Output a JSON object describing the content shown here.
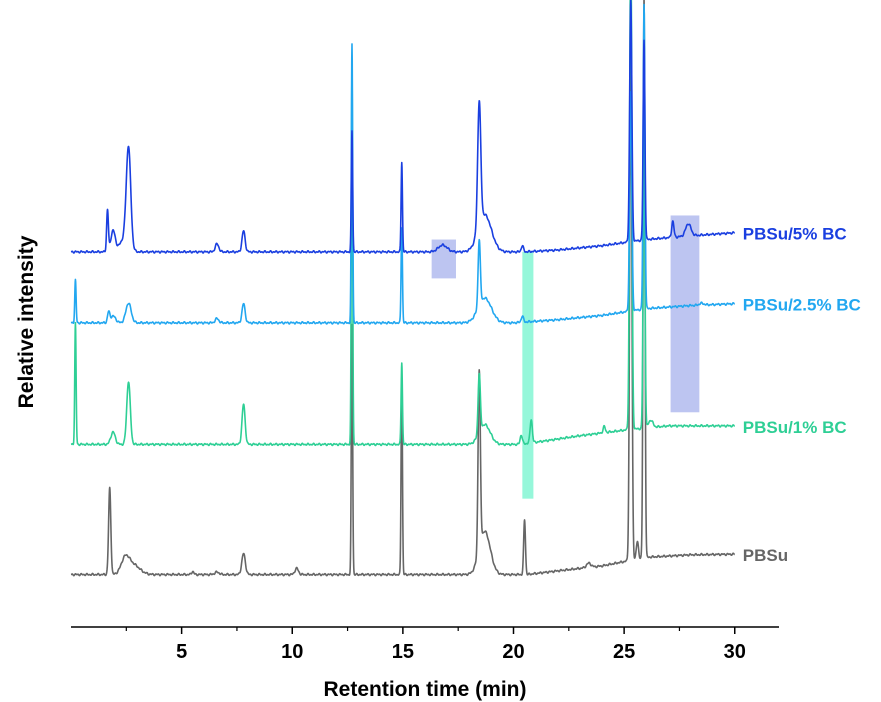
{
  "chart_data": {
    "type": "line",
    "title": "",
    "xlabel": "Retention time (min)",
    "ylabel": "Relative intensity",
    "xlim": [
      0,
      32
    ],
    "xticks": [
      5,
      10,
      15,
      20,
      25,
      30
    ],
    "ylim": [
      0,
      100
    ],
    "yticks_shown": false,
    "grid": false,
    "legend": "series labels placed at right end of each trace",
    "highlight_regions": [
      {
        "x": [
          16.3,
          17.4
        ],
        "y": [
          56.5,
          62.8
        ],
        "color": "#9aa6ea"
      },
      {
        "x": [
          20.4,
          20.9
        ],
        "y": [
          20.8,
          60.8
        ],
        "color": "#5ef3c6"
      },
      {
        "x": [
          27.1,
          28.4
        ],
        "y": [
          34.8,
          66.7
        ],
        "color": "#9aa6ea"
      }
    ],
    "series": [
      {
        "name": "PBSu",
        "color": "#666666",
        "baseline": 8.5,
        "end_value": 11.8,
        "drift": [
          [
            0,
            0
          ],
          [
            20.6,
            0
          ],
          [
            22,
            0.6
          ],
          [
            24,
            1.4
          ],
          [
            26,
            2.8
          ],
          [
            28,
            3.2
          ],
          [
            30,
            3.3
          ]
        ],
        "peaks": [
          [
            1.75,
            14,
            0.05
          ],
          [
            2.45,
            2.3,
            0.18
          ],
          [
            2.8,
            1.6,
            0.3
          ],
          [
            5.5,
            0.5,
            0.05
          ],
          [
            6.6,
            0.4,
            0.1
          ],
          [
            7.8,
            3.4,
            0.08
          ],
          [
            10.2,
            1.0,
            0.08
          ],
          [
            12.7,
            40.5,
            0.03
          ],
          [
            14.95,
            32,
            0.03
          ],
          [
            18.45,
            29,
            0.05
          ],
          [
            18.7,
            7,
            0.25
          ],
          [
            20.5,
            8.9,
            0.04
          ],
          [
            23.4,
            0.7,
            0.1
          ],
          [
            25.3,
            81.5,
            0.05
          ],
          [
            25.6,
            2.8,
            0.05
          ],
          [
            25.9,
            90.9,
            0.04
          ]
        ]
      },
      {
        "name": "PBSu/1% BC",
        "color": "#2ecf95",
        "baseline": 29.6,
        "end_value": 32.6,
        "drift": [
          [
            0,
            0
          ],
          [
            20.3,
            0
          ],
          [
            21.5,
            0.6
          ],
          [
            23,
            1.4
          ],
          [
            25,
            2.3
          ],
          [
            27,
            3.0
          ],
          [
            30,
            3.0
          ]
        ],
        "peaks": [
          [
            0.2,
            19.6,
            0.03
          ],
          [
            1.9,
            2.0,
            0.1
          ],
          [
            2.6,
            10.2,
            0.08
          ],
          [
            7.8,
            6.5,
            0.07
          ],
          [
            12.7,
            60.9,
            0.03
          ],
          [
            14.95,
            13.3,
            0.03
          ],
          [
            18.45,
            9.6,
            0.05
          ],
          [
            18.7,
            3.2,
            0.25
          ],
          [
            20.35,
            1.5,
            0.05
          ],
          [
            20.8,
            3.8,
            0.05
          ],
          [
            24.1,
            1.0,
            0.05
          ],
          [
            25.3,
            80.0,
            0.05
          ],
          [
            25.9,
            50.6,
            0.04
          ],
          [
            26.2,
            1.2,
            0.1
          ]
        ]
      },
      {
        "name": "PBSu/2.5% BC",
        "color": "#22a7f0",
        "baseline": 49.3,
        "end_value": 52.4,
        "drift": [
          [
            0,
            0
          ],
          [
            20,
            0
          ],
          [
            22,
            0.5
          ],
          [
            24,
            1.2
          ],
          [
            26,
            2.3
          ],
          [
            28,
            2.8
          ],
          [
            30,
            3.1
          ]
        ],
        "peaks": [
          [
            0.2,
            6.9,
            0.03
          ],
          [
            1.7,
            1.6,
            0.05
          ],
          [
            1.9,
            1.1,
            0.12
          ],
          [
            2.6,
            3.2,
            0.12
          ],
          [
            6.6,
            0.7,
            0.08
          ],
          [
            7.8,
            3.1,
            0.07
          ],
          [
            12.7,
            45.2,
            0.03
          ],
          [
            14.95,
            15.5,
            0.03
          ],
          [
            18.45,
            10.7,
            0.05
          ],
          [
            18.7,
            4.0,
            0.3
          ],
          [
            20.4,
            1.0,
            0.05
          ],
          [
            25.3,
            35.5,
            0.05
          ],
          [
            25.9,
            49.3,
            0.04
          ],
          [
            28.5,
            0.3,
            0.1
          ]
        ]
      },
      {
        "name": "PBSu/5% BC",
        "color": "#1a3fe0",
        "baseline": 60.8,
        "end_value": 63.9,
        "drift": [
          [
            0,
            0
          ],
          [
            20.5,
            0
          ],
          [
            22,
            0.3
          ],
          [
            24,
            1.0
          ],
          [
            26,
            2.0
          ],
          [
            28,
            2.6
          ],
          [
            30,
            3.1
          ]
        ],
        "peaks": [
          [
            1.65,
            6.7,
            0.04
          ],
          [
            1.9,
            3.4,
            0.1
          ],
          [
            2.6,
            16.0,
            0.1
          ],
          [
            2.4,
            2.0,
            0.2
          ],
          [
            6.6,
            1.3,
            0.08
          ],
          [
            7.8,
            3.4,
            0.07
          ],
          [
            12.7,
            19.6,
            0.03
          ],
          [
            14.95,
            14.6,
            0.03
          ],
          [
            16.8,
            1.1,
            0.2
          ],
          [
            18.45,
            20.3,
            0.07
          ],
          [
            18.7,
            6.0,
            0.3
          ],
          [
            20.4,
            1.0,
            0.05
          ],
          [
            25.3,
            39.1,
            0.05
          ],
          [
            25.9,
            32.3,
            0.04
          ],
          [
            27.2,
            2.6,
            0.05
          ],
          [
            27.9,
            2.0,
            0.12
          ]
        ]
      }
    ]
  }
}
